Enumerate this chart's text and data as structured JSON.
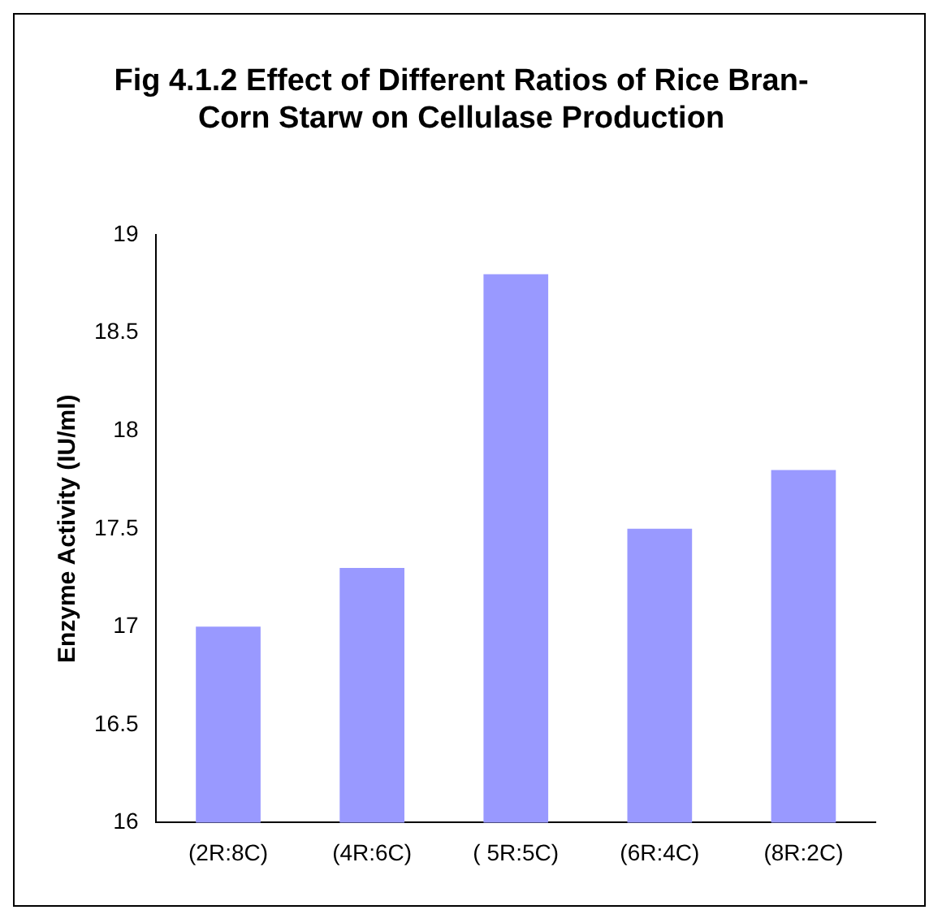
{
  "chart_data": {
    "type": "bar",
    "title": [
      "Fig 4.1.2 Effect of Different Ratios of Rice Bran-",
      "Corn Starw on Cellulase Production"
    ],
    "ylabel": "Enzyme Activity (IU/ml)",
    "categories": [
      "(2R:8C)",
      "(4R:6C)",
      "( 5R:5C)",
      "(6R:4C)",
      "(8R:2C)"
    ],
    "values": [
      17.0,
      17.3,
      18.8,
      17.5,
      17.8
    ],
    "color": "#9999ff",
    "ylim": [
      16,
      19
    ],
    "yticks": [
      16,
      16.5,
      17,
      17.5,
      18,
      18.5,
      19
    ],
    "grid": false,
    "legend": false
  }
}
